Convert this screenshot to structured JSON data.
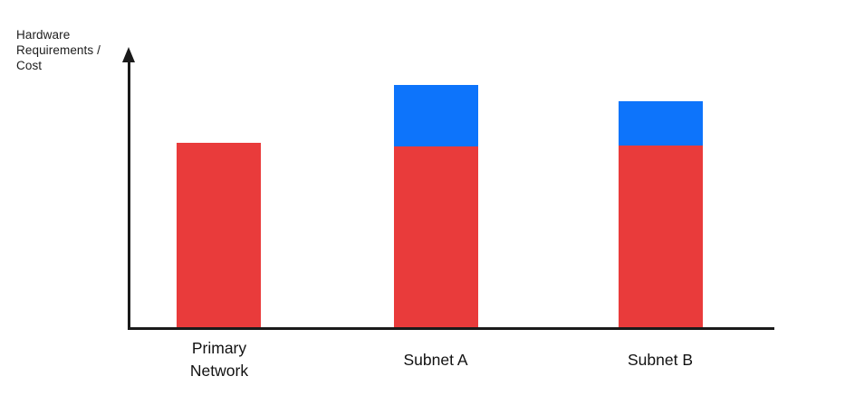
{
  "chart": {
    "y_axis_label_lines": [
      "Hardware",
      "Requirements /",
      "Cost"
    ]
  },
  "chart_data": {
    "type": "bar",
    "stacked": true,
    "title": "",
    "xlabel": "",
    "ylabel": "Hardware Requirements / Cost",
    "categories": [
      "Primary Network",
      "Subnet A",
      "Subnet B"
    ],
    "series": [
      {
        "name": "red",
        "color": "#E93B3B",
        "values": [
          67,
          66,
          66
        ]
      },
      {
        "name": "blue",
        "color": "#0D74FB",
        "values": [
          0,
          22,
          16
        ]
      }
    ],
    "ylim": [
      0,
      100
    ],
    "grid": false,
    "legend": "none",
    "axis_numeric_labels": false,
    "axis_color": "#1A1A1A"
  },
  "colors": {
    "background": "#FFFFFF",
    "text": "#111111"
  }
}
